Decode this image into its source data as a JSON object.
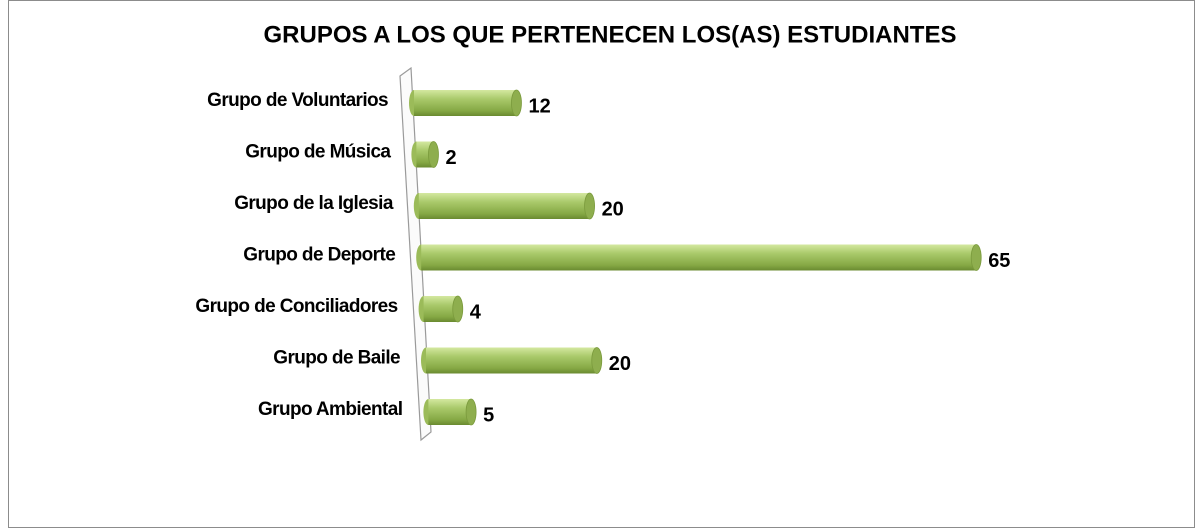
{
  "chart_data": {
    "type": "bar",
    "title": "GRUPOS A LOS QUE PERTENECEN LOS(AS) ESTUDIANTES",
    "categories": [
      "Grupo de Voluntarios",
      "Grupo de Música",
      "Grupo de la Iglesia",
      "Grupo de Deporte",
      "Grupo de Conciliadores",
      "Grupo de Baile",
      "Grupo Ambiental"
    ],
    "values": [
      12,
      2,
      20,
      65,
      4,
      20,
      5
    ],
    "color": "#9bbb59"
  }
}
